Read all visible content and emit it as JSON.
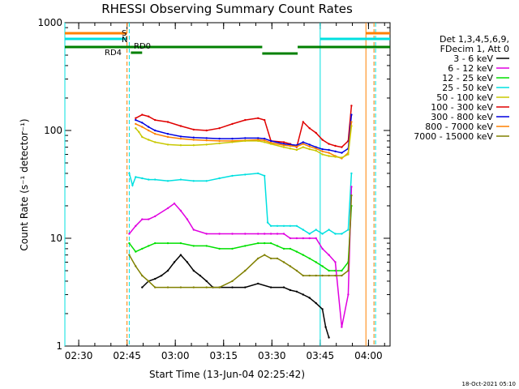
{
  "chart_data": {
    "type": "line",
    "title": "RHESSI Observing Summary Count Rates",
    "xlabel": "Start Time (13-Jun-04 02:25:42)",
    "ylabel": "Count Rate (s⁻¹ detector⁻¹)",
    "x_tick_labels": [
      "02:30",
      "02:45",
      "03:00",
      "03:15",
      "03:30",
      "03:45",
      "04:00"
    ],
    "x_tick_minutes": [
      4.3,
      19.3,
      34.3,
      49.3,
      64.3,
      79.3,
      94.3
    ],
    "xlim_minutes": [
      0,
      101
    ],
    "y_scale": "log",
    "ylim": [
      1,
      1000
    ],
    "y_tick_labels": [
      "1",
      "10",
      "100",
      "1000"
    ],
    "legend": {
      "position": "right",
      "header": [
        "Det 1,3,4,5,6,9,",
        "FDecim 1, Att 0"
      ],
      "entries": [
        {
          "label": "3 - 6 keV",
          "color": "#000000"
        },
        {
          "label": "6 - 12 keV",
          "color": "#e000e0"
        },
        {
          "label": "12 - 25 keV",
          "color": "#00e000"
        },
        {
          "label": "25 - 50 keV",
          "color": "#00e0e0"
        },
        {
          "label": "50 - 100 keV",
          "color": "#c8c800"
        },
        {
          "label": "100 - 300 keV",
          "color": "#e00000"
        },
        {
          "label": "300 - 800 keV",
          "color": "#0000e0"
        },
        {
          "label": "800 - 7000 keV",
          "color": "#ff8000"
        },
        {
          "label": "7000 - 15000 keV",
          "color": "#808000"
        }
      ]
    },
    "flag_labels": {
      "saa": "S",
      "night": "N",
      "rd0": "RD0",
      "rd4": "RD4"
    },
    "series": [
      {
        "name": "100 - 300 keV",
        "color": "#e00000",
        "x": [
          22,
          24,
          26,
          28,
          32,
          36,
          40,
          44,
          48,
          52,
          56,
          60,
          62,
          64,
          68,
          70,
          72,
          74,
          76,
          78,
          80,
          82,
          84,
          86,
          88,
          89
        ],
        "y": [
          130,
          140,
          135,
          125,
          120,
          110,
          102,
          100,
          105,
          115,
          125,
          130,
          125,
          80,
          78,
          75,
          70,
          120,
          105,
          95,
          82,
          75,
          72,
          70,
          80,
          170
        ]
      },
      {
        "name": "300 - 800 keV",
        "color": "#0000e0",
        "x": [
          22,
          24,
          26,
          28,
          32,
          36,
          40,
          44,
          48,
          52,
          56,
          60,
          62,
          64,
          68,
          70,
          72,
          74,
          76,
          78,
          80,
          82,
          84,
          86,
          88,
          89
        ],
        "y": [
          125,
          118,
          108,
          100,
          93,
          88,
          86,
          85,
          84,
          84,
          85,
          85,
          84,
          80,
          75,
          74,
          73,
          78,
          74,
          70,
          67,
          66,
          64,
          62,
          68,
          140
        ]
      },
      {
        "name": "800 - 7000 keV",
        "color": "#ff8000",
        "x": [
          22,
          24,
          26,
          28,
          32,
          36,
          40,
          44,
          48,
          52,
          56,
          60,
          62,
          64,
          68,
          70,
          72,
          74,
          76,
          78,
          80,
          82,
          84,
          86,
          88,
          89
        ],
        "y": [
          115,
          108,
          100,
          93,
          87,
          84,
          82,
          81,
          80,
          80,
          81,
          82,
          81,
          77,
          73,
          72,
          71,
          75,
          71,
          68,
          64,
          62,
          58,
          55,
          62,
          120
        ]
      },
      {
        "name": "50 - 100 keV",
        "color": "#c8c800",
        "x": [
          22,
          23,
          24,
          26,
          28,
          32,
          36,
          40,
          44,
          48,
          52,
          56,
          60,
          62,
          64,
          68,
          70,
          72,
          74,
          76,
          78,
          80,
          82,
          84,
          86,
          88,
          89
        ],
        "y": [
          105,
          97,
          87,
          82,
          78,
          74,
          73,
          73,
          74,
          76,
          78,
          80,
          80,
          78,
          75,
          70,
          68,
          66,
          70,
          67,
          65,
          60,
          58,
          57,
          56,
          60,
          110
        ]
      },
      {
        "name": "25 - 50 keV",
        "color": "#00e0e0",
        "x": [
          20,
          21,
          22,
          24,
          26,
          28,
          32,
          36,
          40,
          44,
          48,
          52,
          56,
          60,
          62,
          63,
          64,
          66,
          68,
          70,
          72,
          74,
          76,
          78,
          80,
          82,
          84,
          86,
          88,
          89
        ],
        "y": [
          40,
          31,
          37,
          36,
          35,
          35,
          34,
          35,
          34,
          34,
          36,
          38,
          39,
          40,
          38,
          14,
          13,
          13,
          13,
          13,
          13,
          12,
          11,
          12,
          11,
          12,
          11,
          11,
          12,
          40
        ]
      },
      {
        "name": "12 - 25 keV",
        "color": "#00e000",
        "x": [
          20,
          22,
          24,
          26,
          28,
          32,
          36,
          40,
          44,
          48,
          52,
          56,
          60,
          62,
          64,
          66,
          68,
          70,
          72,
          74,
          76,
          78,
          80,
          82,
          84,
          86,
          88,
          89
        ],
        "y": [
          9,
          7.5,
          8,
          8.5,
          9,
          9,
          9,
          8.5,
          8.5,
          8,
          8,
          8.5,
          9,
          9,
          9,
          8.5,
          8,
          8,
          7.5,
          7,
          6.5,
          6,
          5.5,
          5,
          5,
          5,
          6,
          20
        ]
      },
      {
        "name": "6 - 12 keV",
        "color": "#e000e0",
        "x": [
          20,
          22,
          24,
          26,
          28,
          32,
          34,
          36,
          38,
          40,
          44,
          48,
          52,
          56,
          60,
          62,
          64,
          66,
          68,
          70,
          72,
          74,
          76,
          78,
          80,
          82,
          84,
          86,
          88,
          89
        ],
        "y": [
          11,
          13,
          15,
          15,
          16,
          19,
          21,
          18,
          15,
          12,
          11,
          11,
          11,
          11,
          11,
          11,
          11,
          11,
          11,
          10,
          10,
          10,
          10,
          10,
          8,
          7,
          6,
          1.5,
          3,
          30
        ]
      },
      {
        "name": "3 - 6 keV",
        "color": "#000000",
        "x": [
          24,
          26,
          28,
          30,
          32,
          34,
          36,
          38,
          40,
          42,
          44,
          46,
          48,
          52,
          56,
          60,
          64,
          68,
          70,
          72,
          74,
          76,
          78,
          80,
          81,
          82
        ],
        "y": [
          3.5,
          4,
          4.2,
          4.5,
          5,
          6,
          7,
          6,
          5,
          4.5,
          4,
          3.5,
          3.5,
          3.5,
          3.5,
          3.8,
          3.5,
          3.5,
          3.3,
          3.2,
          3.0,
          2.8,
          2.5,
          2.2,
          1.5,
          1.2
        ]
      },
      {
        "name": "7000 - 15000 keV",
        "color": "#808000",
        "x": [
          20,
          22,
          24,
          26,
          28,
          32,
          36,
          40,
          44,
          48,
          52,
          56,
          60,
          62,
          64,
          66,
          68,
          70,
          72,
          74,
          76,
          78,
          80,
          82,
          84,
          86,
          88,
          89
        ],
        "y": [
          7,
          5.5,
          4.5,
          4,
          3.5,
          3.5,
          3.5,
          3.5,
          3.5,
          3.5,
          4,
          5,
          6.5,
          7,
          6.5,
          6.5,
          6,
          5.5,
          5,
          4.5,
          4.5,
          4.5,
          4.5,
          4.5,
          4.5,
          4.5,
          5,
          25
        ]
      }
    ],
    "flags": [
      {
        "name": "saa",
        "color": "#ff8000",
        "segments": [
          [
            0,
            19.3
          ],
          [
            93.5,
            101
          ]
        ]
      },
      {
        "name": "night",
        "color": "#00e0e0",
        "segments": [
          [
            0,
            19.3
          ],
          [
            79.3,
            101
          ]
        ]
      },
      {
        "name": "rd0",
        "color": "#008000",
        "segments": [
          [
            0,
            61.3
          ],
          [
            61.3,
            72.3
          ],
          [
            72.3,
            101
          ]
        ]
      },
      {
        "name": "rd4",
        "color": "#008000",
        "segments": [
          [
            20.5,
            24
          ]
        ]
      }
    ],
    "vlines": [
      {
        "x": 19.3,
        "color": "#ff8000",
        "dash": true
      },
      {
        "x": 20.0,
        "color": "#00e0e0",
        "dash": true
      },
      {
        "x": 79.3,
        "color": "#00e0e0",
        "dash": false
      },
      {
        "x": 93.5,
        "color": "#ff8000",
        "dash": false
      },
      {
        "x": 96.5,
        "color": "#00e0e0",
        "dash": true
      },
      {
        "x": 96.0,
        "color": "#ff8000",
        "dash": true
      },
      {
        "x": 0,
        "color": "#00e0e0",
        "dash": false
      }
    ]
  },
  "footer": {
    "timestamp": "18-Oct-2021 05:10"
  }
}
